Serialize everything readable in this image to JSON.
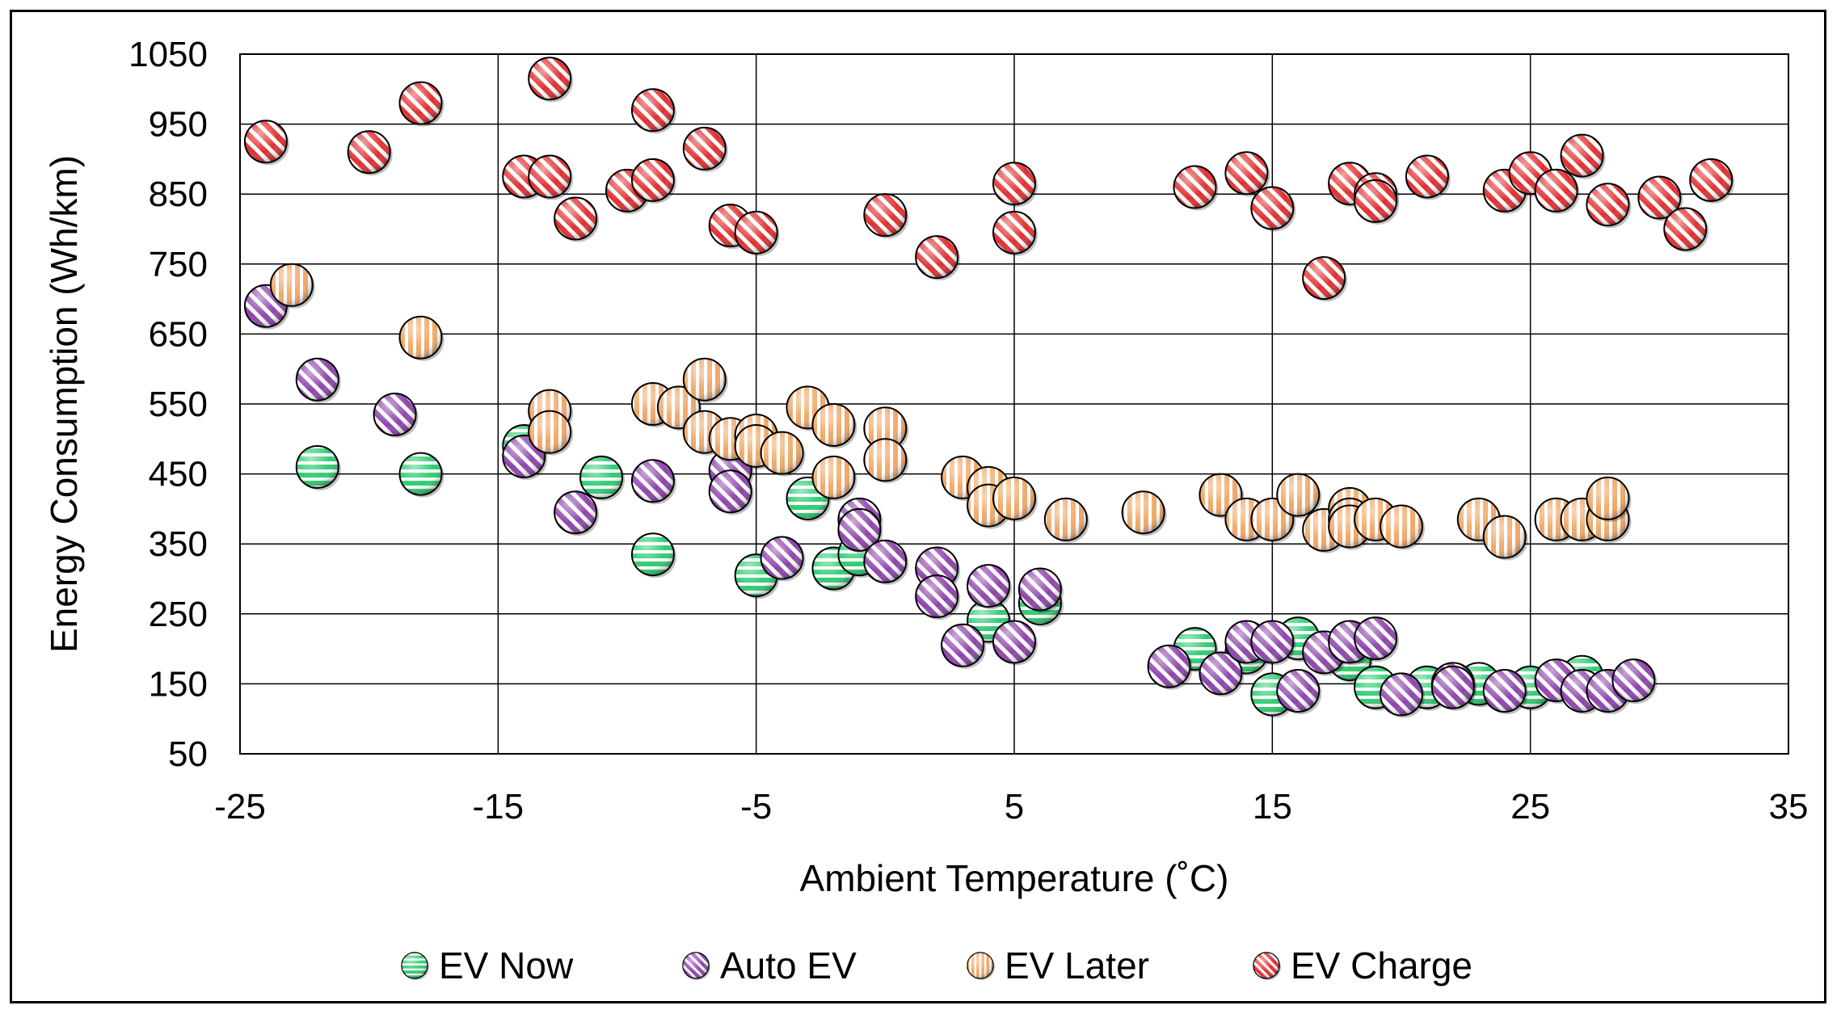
{
  "chart_data": {
    "type": "scatter",
    "title": "",
    "xlabel": "Ambient Temperature (˚C)",
    "ylabel": "Energy Consumption (Wh/km)",
    "xlim": [
      -25,
      35
    ],
    "ylim": [
      50,
      1050
    ],
    "xticks": [
      -25,
      -15,
      -5,
      5,
      15,
      25,
      35
    ],
    "yticks": [
      50,
      150,
      250,
      350,
      450,
      550,
      650,
      750,
      850,
      950,
      1050
    ],
    "xtick_labels": [
      "-25",
      "-15",
      "-5",
      "5",
      "15",
      "25",
      "35"
    ],
    "ytick_labels": [
      "50",
      "150",
      "250",
      "350",
      "450",
      "550",
      "650",
      "750",
      "850",
      "950",
      "1050"
    ],
    "grid": true,
    "legend_position": "bottom",
    "series": [
      {
        "name": "EV Now",
        "color": "#2ecc71",
        "stripe": "horizontal",
        "points": [
          [
            -22,
            460
          ],
          [
            -18,
            450
          ],
          [
            -14,
            490
          ],
          [
            -11,
            445
          ],
          [
            -9,
            335
          ],
          [
            -5,
            305
          ],
          [
            -3,
            415
          ],
          [
            -2,
            315
          ],
          [
            -1,
            335
          ],
          [
            4,
            240
          ],
          [
            6,
            265
          ],
          [
            12,
            200
          ],
          [
            14,
            195
          ],
          [
            15,
            135
          ],
          [
            16,
            215
          ],
          [
            18,
            185
          ],
          [
            19,
            145
          ],
          [
            21,
            145
          ],
          [
            23,
            150
          ],
          [
            25,
            145
          ],
          [
            27,
            160
          ]
        ]
      },
      {
        "name": "Auto EV",
        "color": "#8e44ad",
        "stripe": "diagonal",
        "points": [
          [
            -24,
            690
          ],
          [
            -22,
            585
          ],
          [
            -19,
            535
          ],
          [
            -14,
            475
          ],
          [
            -12,
            395
          ],
          [
            -9,
            440
          ],
          [
            -6,
            455
          ],
          [
            -6,
            425
          ],
          [
            -4,
            330
          ],
          [
            -1,
            385
          ],
          [
            -1,
            370
          ],
          [
            0,
            325
          ],
          [
            2,
            315
          ],
          [
            2,
            275
          ],
          [
            3,
            205
          ],
          [
            4,
            290
          ],
          [
            5,
            210
          ],
          [
            6,
            285
          ],
          [
            11,
            175
          ],
          [
            13,
            165
          ],
          [
            14,
            210
          ],
          [
            15,
            210
          ],
          [
            16,
            140
          ],
          [
            17,
            195
          ],
          [
            18,
            210
          ],
          [
            19,
            215
          ],
          [
            20,
            135
          ],
          [
            22,
            150
          ],
          [
            22,
            145
          ],
          [
            24,
            140
          ],
          [
            26,
            155
          ],
          [
            27,
            140
          ],
          [
            28,
            140
          ],
          [
            29,
            155
          ]
        ]
      },
      {
        "name": "EV Later",
        "color": "#f0a868",
        "stripe": "vertical",
        "points": [
          [
            -23,
            720
          ],
          [
            -18,
            645
          ],
          [
            -13,
            540
          ],
          [
            -13,
            510
          ],
          [
            -9,
            550
          ],
          [
            -8,
            545
          ],
          [
            -7,
            585
          ],
          [
            -7,
            510
          ],
          [
            -6,
            500
          ],
          [
            -5,
            505
          ],
          [
            -5,
            490
          ],
          [
            -4,
            480
          ],
          [
            -3,
            545
          ],
          [
            -2,
            520
          ],
          [
            -2,
            445
          ],
          [
            0,
            515
          ],
          [
            0,
            470
          ],
          [
            3,
            445
          ],
          [
            4,
            430
          ],
          [
            4,
            405
          ],
          [
            5,
            415
          ],
          [
            7,
            385
          ],
          [
            10,
            395
          ],
          [
            13,
            420
          ],
          [
            14,
            385
          ],
          [
            15,
            385
          ],
          [
            16,
            420
          ],
          [
            17,
            370
          ],
          [
            18,
            400
          ],
          [
            18,
            385
          ],
          [
            18,
            375
          ],
          [
            19,
            385
          ],
          [
            20,
            375
          ],
          [
            23,
            385
          ],
          [
            24,
            360
          ],
          [
            26,
            385
          ],
          [
            27,
            385
          ],
          [
            28,
            385
          ],
          [
            28,
            415
          ]
        ]
      },
      {
        "name": "EV Charge",
        "color": "#e03030",
        "stripe": "diagonal-alt",
        "points": [
          [
            -24,
            925
          ],
          [
            -20,
            910
          ],
          [
            -18,
            980
          ],
          [
            -14,
            875
          ],
          [
            -13,
            1015
          ],
          [
            -13,
            875
          ],
          [
            -12,
            815
          ],
          [
            -10,
            855
          ],
          [
            -9,
            970
          ],
          [
            -9,
            870
          ],
          [
            -7,
            915
          ],
          [
            -6,
            805
          ],
          [
            -5,
            795
          ],
          [
            0,
            820
          ],
          [
            2,
            760
          ],
          [
            5,
            865
          ],
          [
            5,
            795
          ],
          [
            12,
            860
          ],
          [
            14,
            880
          ],
          [
            15,
            830
          ],
          [
            17,
            730
          ],
          [
            18,
            865
          ],
          [
            19,
            850
          ],
          [
            19,
            840
          ],
          [
            21,
            875
          ],
          [
            24,
            855
          ],
          [
            25,
            880
          ],
          [
            26,
            855
          ],
          [
            27,
            905
          ],
          [
            28,
            835
          ],
          [
            30,
            845
          ],
          [
            31,
            800
          ],
          [
            32,
            870
          ]
        ]
      }
    ]
  }
}
